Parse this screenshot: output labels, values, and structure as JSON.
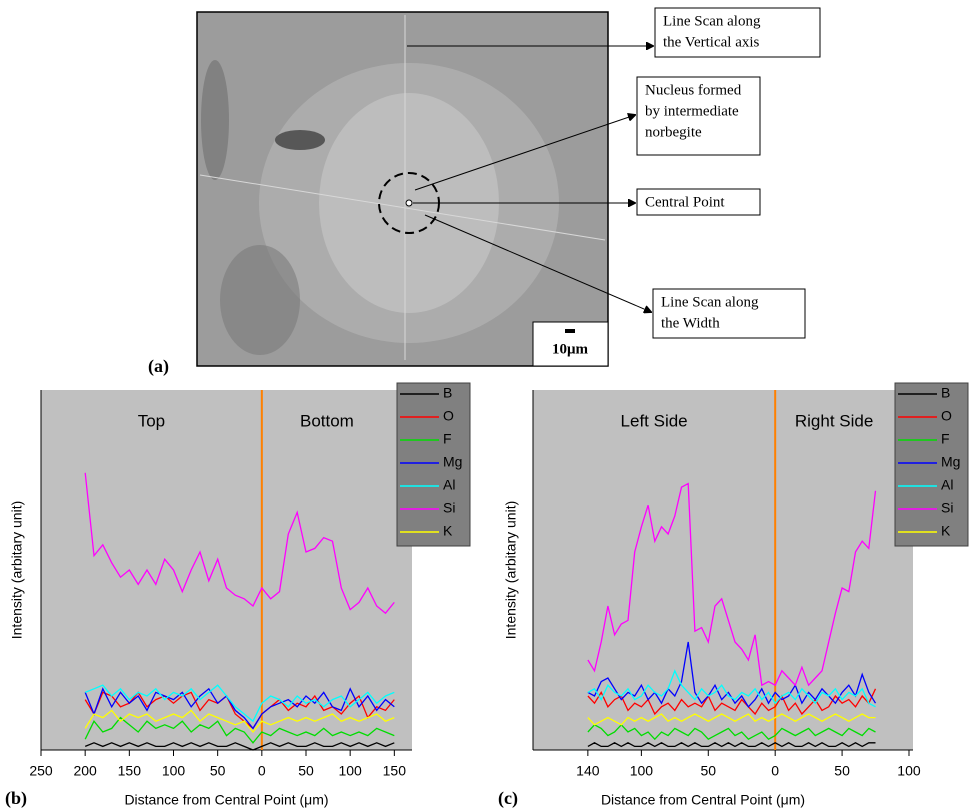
{
  "figure_a": {
    "label": "(a)",
    "scale_bar": "10μm",
    "annotations": [
      {
        "lines": [
          "Line Scan along",
          "the Vertical axis"
        ]
      },
      {
        "lines": [
          "Nucleus formed",
          "by intermediate",
          "norbegite"
        ]
      },
      {
        "lines": [
          "Central Point"
        ]
      },
      {
        "lines": [
          "Line Scan along",
          "the Width"
        ]
      }
    ]
  },
  "chart_data": [
    {
      "type": "line",
      "panel_label": "(b)",
      "x_label": "Distance from Central Point (μm)",
      "y_label": "Intensity (arbitary unit)",
      "region_labels": [
        "Top",
        "Bottom"
      ],
      "vline": {
        "x": 0,
        "color": "#ff8000"
      },
      "legend": "upper right",
      "xlim": [
        -250,
        170
      ],
      "ylim": [
        0,
        100
      ],
      "xticks": [
        {
          "value": -250,
          "label": "250"
        },
        {
          "value": -200,
          "label": "200"
        },
        {
          "value": -150,
          "label": "150"
        },
        {
          "value": -100,
          "label": "100"
        },
        {
          "value": -50,
          "label": "50"
        },
        0,
        50,
        100,
        150
      ],
      "x": [
        -200,
        -190,
        -180,
        -170,
        -160,
        -150,
        -140,
        -130,
        -120,
        -110,
        -100,
        -90,
        -80,
        -70,
        -60,
        -50,
        -40,
        -30,
        -20,
        -10,
        0,
        10,
        20,
        30,
        40,
        50,
        60,
        70,
        80,
        90,
        100,
        110,
        120,
        130,
        140,
        150
      ],
      "series": [
        {
          "name": "B",
          "color": "#000000",
          "values": [
            1,
            2,
            1,
            2,
            1,
            2,
            1,
            2,
            1,
            1,
            2,
            1,
            2,
            1,
            2,
            1,
            1,
            2,
            1,
            0,
            1,
            2,
            1,
            2,
            1,
            1,
            2,
            1,
            1,
            2,
            1,
            2,
            1,
            2,
            1,
            2
          ]
        },
        {
          "name": "O",
          "color": "#ff0000",
          "values": [
            14,
            10,
            16,
            15,
            12,
            13,
            16,
            12,
            14,
            15,
            13,
            15,
            16,
            11,
            14,
            13,
            15,
            10,
            8,
            6,
            10,
            12,
            14,
            11,
            13,
            12,
            15,
            11,
            12,
            10,
            13,
            15,
            9,
            12,
            11,
            14
          ]
        },
        {
          "name": "F",
          "color": "#00dd00",
          "values": [
            3,
            8,
            5,
            6,
            9,
            7,
            5,
            8,
            6,
            7,
            6,
            8,
            5,
            7,
            6,
            8,
            4,
            6,
            5,
            2,
            5,
            4,
            6,
            5,
            4,
            5,
            4,
            6,
            4,
            5,
            4,
            5,
            4,
            6,
            5,
            4
          ]
        },
        {
          "name": "Mg",
          "color": "#0000ff",
          "values": [
            16,
            10,
            17,
            12,
            16,
            13,
            15,
            11,
            16,
            15,
            14,
            16,
            12,
            15,
            17,
            13,
            15,
            11,
            9,
            6,
            10,
            12,
            13,
            14,
            12,
            15,
            13,
            16,
            12,
            11,
            17,
            12,
            15,
            11,
            14,
            12
          ]
        },
        {
          "name": "Al",
          "color": "#00ffff",
          "values": [
            16,
            17,
            18,
            15,
            17,
            14,
            16,
            15,
            17,
            14,
            16,
            15,
            17,
            14,
            16,
            18,
            15,
            12,
            10,
            8,
            13,
            15,
            14,
            12,
            15,
            13,
            14,
            12,
            14,
            15,
            12,
            14,
            16,
            13,
            15,
            16
          ]
        },
        {
          "name": "Si",
          "color": "#ff00ff",
          "values": [
            77,
            54,
            57,
            52,
            48,
            50,
            46,
            50,
            46,
            53,
            50,
            44,
            50,
            55,
            47,
            53,
            45,
            43,
            42,
            40,
            45,
            42,
            44,
            60,
            66,
            55,
            56,
            59,
            58,
            45,
            39,
            41,
            45,
            40,
            38,
            41
          ]
        },
        {
          "name": "K",
          "color": "#ffff00",
          "values": [
            6,
            10,
            9,
            11,
            8,
            10,
            9,
            10,
            8,
            9,
            10,
            9,
            11,
            8,
            10,
            9,
            8,
            7,
            8,
            5,
            8,
            7,
            8,
            9,
            8,
            9,
            8,
            9,
            10,
            8,
            9,
            8,
            9,
            10,
            8,
            9
          ]
        }
      ]
    },
    {
      "type": "line",
      "panel_label": "(c)",
      "x_label": "Distance from Central Point (μm)",
      "y_label": "Intensity (arbitary unit)",
      "region_labels": [
        "Left Side",
        "Right Side"
      ],
      "vline": {
        "x": 0,
        "color": "#ff8000"
      },
      "legend": "upper right",
      "xlim": [
        -181,
        103
      ],
      "ylim": [
        0,
        100
      ],
      "xticks": [
        {
          "value": -140,
          "label": "140"
        },
        {
          "value": -100,
          "label": "100"
        },
        {
          "value": -50,
          "label": "50"
        },
        0,
        50,
        100
      ],
      "x": [
        -140,
        -135,
        -130,
        -125,
        -120,
        -115,
        -110,
        -105,
        -100,
        -95,
        -90,
        -85,
        -80,
        -75,
        -70,
        -65,
        -60,
        -55,
        -50,
        -45,
        -40,
        -35,
        -30,
        -25,
        -20,
        -15,
        -10,
        -5,
        0,
        5,
        10,
        15,
        20,
        25,
        30,
        35,
        40,
        45,
        50,
        55,
        60,
        65,
        70,
        75
      ],
      "series": [
        {
          "name": "B",
          "color": "#000000",
          "values": [
            1,
            2,
            1,
            1,
            2,
            1,
            2,
            1,
            1,
            2,
            1,
            2,
            1,
            1,
            2,
            1,
            2,
            1,
            1,
            2,
            1,
            2,
            1,
            2,
            1,
            1,
            2,
            1,
            2,
            1,
            2,
            1,
            1,
            2,
            1,
            2,
            1,
            1,
            2,
            1,
            2,
            1,
            2,
            2
          ]
        },
        {
          "name": "O",
          "color": "#ff0000",
          "values": [
            15,
            13,
            16,
            12,
            14,
            15,
            11,
            13,
            12,
            14,
            10,
            12,
            13,
            11,
            14,
            12,
            13,
            12,
            15,
            11,
            13,
            12,
            11,
            14,
            12,
            10,
            13,
            11,
            12,
            15,
            11,
            13,
            10,
            12,
            14,
            11,
            12,
            15,
            13,
            14,
            12,
            15,
            13,
            17
          ]
        },
        {
          "name": "F",
          "color": "#00dd00",
          "values": [
            5,
            7,
            6,
            4,
            5,
            7,
            5,
            6,
            4,
            5,
            3,
            5,
            4,
            6,
            5,
            4,
            6,
            5,
            3,
            4,
            5,
            6,
            4,
            5,
            3,
            4,
            5,
            3,
            4,
            6,
            5,
            4,
            5,
            6,
            4,
            5,
            6,
            5,
            4,
            6,
            5,
            4,
            6,
            5
          ]
        },
        {
          "name": "Mg",
          "color": "#0000ff",
          "values": [
            16,
            15,
            19,
            20,
            17,
            14,
            16,
            15,
            18,
            14,
            16,
            13,
            17,
            15,
            19,
            30,
            16,
            13,
            15,
            18,
            14,
            16,
            13,
            15,
            12,
            14,
            17,
            13,
            16,
            14,
            15,
            18,
            13,
            16,
            14,
            17,
            15,
            13,
            16,
            18,
            15,
            21,
            16,
            13
          ]
        },
        {
          "name": "Al",
          "color": "#00ffff",
          "values": [
            16,
            17,
            14,
            18,
            16,
            15,
            17,
            14,
            15,
            18,
            16,
            15,
            17,
            22,
            18,
            16,
            14,
            17,
            15,
            16,
            18,
            15,
            14,
            16,
            15,
            17,
            14,
            16,
            13,
            15,
            16,
            14,
            17,
            15,
            13,
            16,
            15,
            17,
            14,
            16,
            15,
            17,
            13,
            12
          ]
        },
        {
          "name": "Si",
          "color": "#ff00ff",
          "values": [
            25,
            22,
            30,
            40,
            32,
            35,
            36,
            55,
            62,
            68,
            58,
            62,
            60,
            65,
            73,
            74,
            33,
            34,
            30,
            40,
            42,
            36,
            30,
            28,
            25,
            32,
            18,
            19,
            18,
            22,
            20,
            18,
            23,
            18,
            20,
            22,
            30,
            38,
            45,
            44,
            55,
            58,
            56,
            72
          ]
        },
        {
          "name": "K",
          "color": "#ffff00",
          "values": [
            9,
            7,
            8,
            9,
            8,
            7,
            9,
            8,
            9,
            8,
            9,
            10,
            8,
            9,
            8,
            9,
            10,
            9,
            8,
            9,
            10,
            9,
            8,
            9,
            10,
            8,
            9,
            8,
            9,
            10,
            9,
            8,
            9,
            10,
            9,
            8,
            9,
            10,
            9,
            8,
            9,
            10,
            9,
            9
          ]
        }
      ]
    }
  ]
}
